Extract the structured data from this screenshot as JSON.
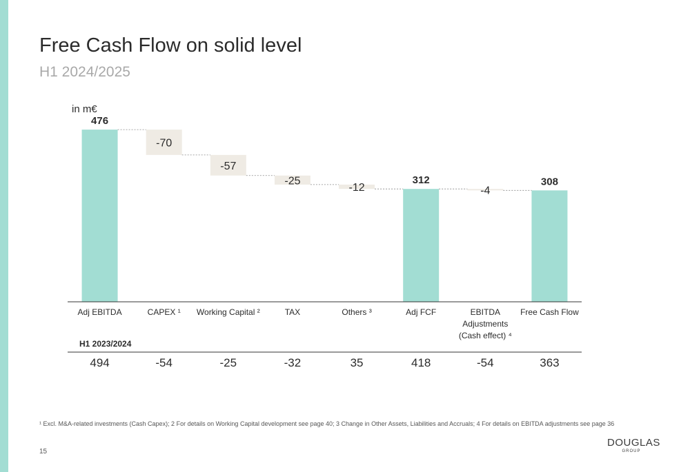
{
  "page": {
    "title": "Free Cash Flow on solid level",
    "subtitle": "H1 2024/2025",
    "footnote": "¹ Excl. M&A-related investments (Cash Capex); 2 For details on Working Capital development see page 40; 3 Change in Other Assets, Liabilities and Accruals; 4 For details on EBITDA adjustments see page 36",
    "page_number": "15",
    "logo_text": "DOUGLAS",
    "logo_subtext": "GROUP"
  },
  "colors": {
    "accent": "#a2ddd3",
    "delta_box": "#efebe4",
    "axis": "#333333",
    "text": "#2b2b2b",
    "muted": "#a9a9a9"
  },
  "chart_data": {
    "type": "bar",
    "subtype": "waterfall",
    "unit_label": "in m€",
    "categories": [
      "Adj EBITDA",
      "CAPEX ¹",
      "Working Capital ²",
      "TAX",
      "Others ³",
      "Adj FCF",
      "EBITDA Adjustments (Cash effect) ⁴",
      "Free Cash Flow"
    ],
    "values": [
      476,
      -70,
      -57,
      -25,
      -12,
      312,
      -4,
      308
    ],
    "value_labels": [
      "476",
      "-70",
      "-57",
      "-25",
      "-12",
      "312",
      "-4",
      "308"
    ],
    "bar_kind": [
      "total",
      "delta",
      "delta",
      "delta",
      "delta",
      "total",
      "delta",
      "total"
    ],
    "ylim": [
      0,
      500
    ],
    "grid": false,
    "comparison_row": {
      "label": "H1 2023/2024",
      "values": [
        "494",
        "-54",
        "-25",
        "-32",
        "35",
        "418",
        "-54",
        "363"
      ]
    }
  }
}
